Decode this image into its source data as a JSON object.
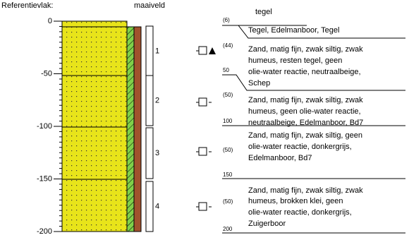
{
  "header": {
    "reference": "Referentievlak:",
    "surface": "maaiveld"
  },
  "axis": {
    "ticks": [
      0,
      -50,
      -100,
      -150,
      -200
    ]
  },
  "samples": [
    "1",
    "2",
    "3",
    "4"
  ],
  "log": [
    {
      "depth": "(6)",
      "lines": [
        "tegel"
      ]
    },
    {
      "lines": [
        "Tegel,  Edelmanboor,  Tegel"
      ]
    },
    {
      "code": "(44)",
      "depth": "50",
      "lines": [
        "Zand, matig fijn, zwak siltig, zwak",
        "humeus, resten tegel, geen",
        "olie-water reactie, neutraalbeige,",
        "Schep"
      ]
    },
    {
      "code": "(50)",
      "depth": "100",
      "lines": [
        "Zand, matig fijn, zwak siltig, zwak",
        "humeus, geen olie-water reactie,",
        "neutraalbeige, Edelmanboor, Bd7"
      ]
    },
    {
      "code": "(50)",
      "depth": "150",
      "lines": [
        "Zand, matig fijn, zwak siltig, geen",
        "olie-water reactie, donkergrijs,",
        "Edelmanboor, Bd7"
      ]
    },
    {
      "code": "(50)",
      "depth": "200",
      "lines": [
        "Zand, matig fijn, zwak siltig, zwak",
        "humeus, brokken klei, geen",
        "olie-water reactie, donkergrijs,",
        "Zuigerboor"
      ]
    }
  ]
}
